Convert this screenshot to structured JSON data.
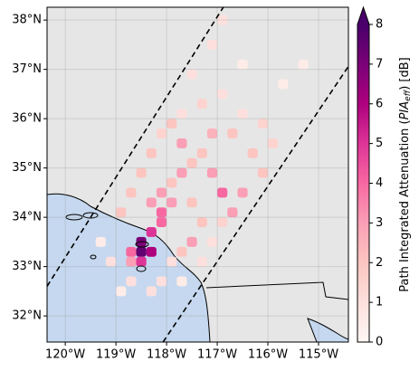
{
  "chart_data": {
    "type": "map",
    "xlim": [
      -120.36,
      -114.41
    ],
    "ylim": [
      31.47,
      38.26
    ],
    "xticks": [
      {
        "value": -120,
        "label": "120°W"
      },
      {
        "value": -119,
        "label": "119°W"
      },
      {
        "value": -118,
        "label": "118°W"
      },
      {
        "value": -117,
        "label": "117°W"
      },
      {
        "value": -116,
        "label": "116°W"
      },
      {
        "value": -115,
        "label": "115°W"
      }
    ],
    "yticks": [
      {
        "value": 32,
        "label": "32°N"
      },
      {
        "value": 33,
        "label": "33°N"
      },
      {
        "value": 34,
        "label": "34°N"
      },
      {
        "value": 35,
        "label": "35°N"
      },
      {
        "value": 36,
        "label": "36°N"
      },
      {
        "value": 37,
        "label": "37°N"
      },
      {
        "value": 38,
        "label": "38°N"
      }
    ],
    "grid": true,
    "swath_edges": [
      {
        "lon": [
          -120.36,
          -116.88
        ],
        "lat": [
          32.6,
          38.26
        ]
      },
      {
        "lon": [
          -118.07,
          -114.41
        ],
        "lat": [
          31.47,
          37.06
        ]
      }
    ],
    "colormap": [
      "#fff7f3",
      "#fde0dd",
      "#fcc5c0",
      "#fa9fb5",
      "#f768a1",
      "#dd3497",
      "#ae017e",
      "#7a0177",
      "#49006a"
    ],
    "clim": [
      0,
      8
    ],
    "cticks": [
      0,
      1,
      2,
      3,
      4,
      5,
      6,
      7,
      8
    ],
    "colorbar_label": {
      "prefix": "Path Integrated Attenuation (",
      "symbol": "PIA",
      "subscript": "eff",
      "suffix": ") [dB]"
    },
    "cells": {
      "lon": [
        -118.5,
        -118.5,
        -118.3,
        -118.5,
        -118.3,
        -118.1,
        -118.7,
        -118.7,
        -118.3,
        -118.1,
        -117.9,
        -117.7,
        -117.5,
        -117.3,
        -117.1,
        -116.9,
        -116.5,
        -116.7,
        -117.3,
        -117.5,
        -117.7,
        -117.9,
        -118.1,
        -118.3,
        -118.7,
        -118.9,
        -119.1,
        -119.3,
        -118.9,
        -118.7,
        -118.5,
        -118.3,
        -118.1,
        -117.9,
        -117.7,
        -117.3,
        -116.9,
        -116.5,
        -116.1,
        -116.3,
        -116.1,
        -115.9,
        -117.5,
        -117.1,
        -116.9,
        -116.5,
        -115.7,
        -115.3,
        -117.7,
        -117.9,
        -118.1,
        -117.5,
        -116.9,
        -117.1,
        -117.3,
        -117.7,
        -116.7,
        -117.1
      ],
      "lat": [
        33.5,
        33.3,
        33.3,
        33.1,
        33.7,
        33.9,
        33.3,
        33.1,
        34.3,
        34.5,
        34.7,
        34.9,
        35.1,
        35.3,
        34.9,
        34.5,
        34.5,
        34.1,
        33.9,
        33.5,
        33.3,
        33.1,
        32.7,
        32.5,
        32.7,
        32.5,
        33.1,
        33.5,
        34.1,
        34.5,
        34.9,
        35.3,
        35.7,
        35.9,
        36.1,
        36.3,
        36.5,
        36.1,
        35.9,
        35.3,
        34.9,
        35.5,
        36.9,
        37.5,
        38.0,
        37.1,
        36.7,
        37.1,
        35.5,
        34.3,
        34.1,
        34.3,
        33.9,
        33.5,
        33.1,
        32.7,
        35.7,
        35.7
      ],
      "value": [
        7,
        7.5,
        6,
        5,
        5,
        4,
        4,
        3,
        3,
        3,
        2,
        3,
        2,
        2,
        3,
        4,
        3,
        3,
        2,
        3,
        2,
        1,
        1,
        1,
        1,
        0.5,
        1,
        0.5,
        2,
        2,
        2,
        2,
        1.5,
        2,
        1,
        1.5,
        1,
        1,
        1.5,
        2,
        2,
        1.5,
        1,
        1,
        1,
        0.5,
        0.5,
        0.5,
        3,
        3,
        4,
        2,
        1.5,
        1,
        1,
        0.5,
        2,
        2.5
      ]
    }
  }
}
